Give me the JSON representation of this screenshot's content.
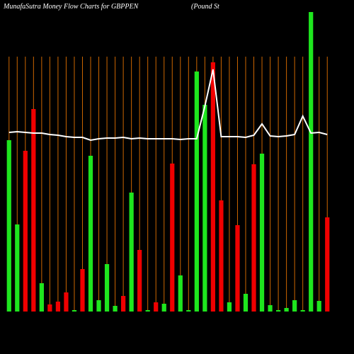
{
  "chart_data": {
    "type": "bar",
    "title": "MunafaSutra  Money Flow  Charts for GBPPEN",
    "subtitle": "(Pound St",
    "categories": [
      null,
      null,
      null,
      null,
      null,
      null,
      null,
      null,
      null,
      null,
      null,
      null,
      null,
      null,
      null,
      null,
      null,
      null,
      null,
      null,
      null,
      null,
      null,
      null,
      null,
      null,
      null,
      null,
      null,
      null,
      null,
      null,
      null,
      null,
      null,
      null,
      null,
      null,
      null,
      null
    ],
    "values": [
      242,
      123,
      227,
      286,
      40,
      10,
      14,
      27,
      2,
      60,
      220,
      16,
      67,
      8,
      22,
      168,
      87,
      2,
      13,
      11,
      209,
      51,
      2,
      339,
      292,
      352,
      157,
      13,
      122,
      25,
      208,
      223,
      9,
      2,
      5,
      16,
      2,
      423,
      15,
      133
    ],
    "colors": [
      "#1ee61e",
      "#1ee61e",
      "#f00000",
      "#f00000",
      "#1ee61e",
      "#f00000",
      "#f00000",
      "#f00000",
      "#1ee61e",
      "#f00000",
      "#1ee61e",
      "#1ee61e",
      "#1ee61e",
      "#1ee61e",
      "#f00000",
      "#1ee61e",
      "#f00000",
      "#1ee61e",
      "#f00000",
      "#1ee61e",
      "#f00000",
      "#1ee61e",
      "#1ee61e",
      "#1ee61e",
      "#1ee61e",
      "#f00000",
      "#f00000",
      "#1ee61e",
      "#f00000",
      "#1ee61e",
      "#f00000",
      "#1ee61e",
      "#1ee61e",
      "#1ee61e",
      "#1ee61e",
      "#1ee61e",
      "#1ee61e",
      "#1ee61e",
      "#1ee61e",
      "#f00000"
    ],
    "line": {
      "color": "#ffffff",
      "values": [
        253,
        254,
        253,
        252,
        252,
        250,
        249,
        247,
        246,
        246,
        242,
        244,
        245,
        245,
        246,
        244,
        245,
        244,
        244,
        244,
        244,
        243,
        244,
        244,
        290,
        342,
        247,
        247,
        247,
        246,
        249,
        265,
        248,
        247,
        248,
        250,
        276,
        252,
        253,
        250
      ]
    },
    "ylim": [
      0,
      425
    ],
    "grid": true,
    "grid_color": "#cc6600"
  }
}
